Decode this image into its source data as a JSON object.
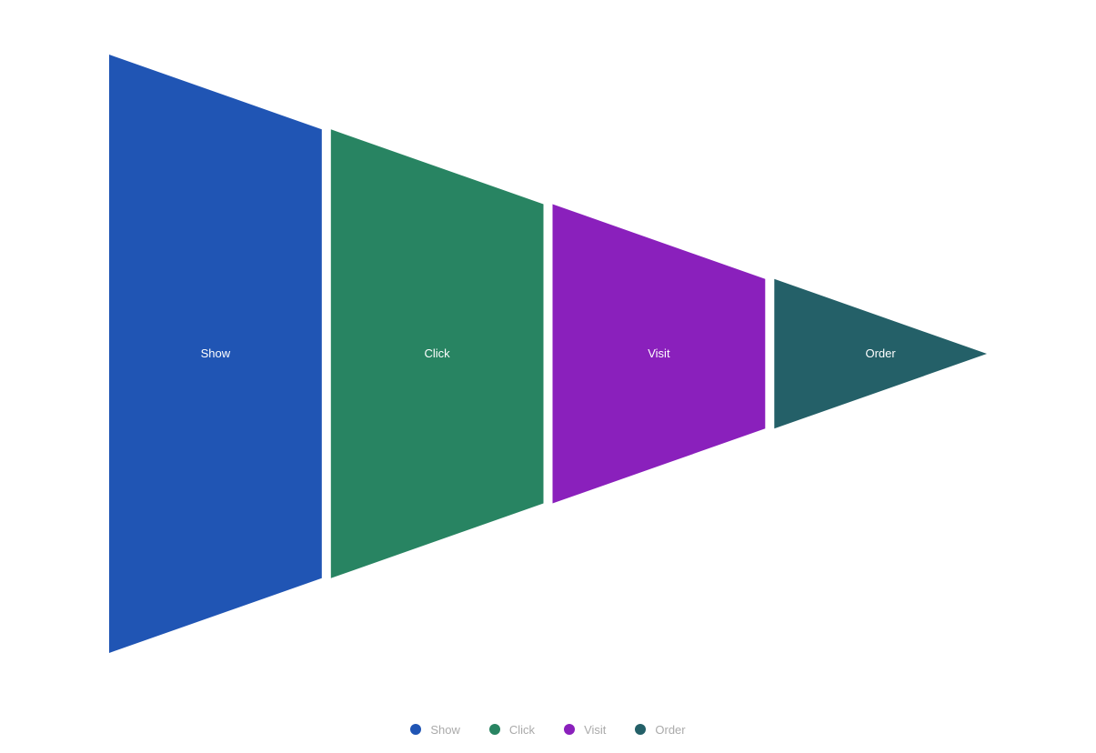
{
  "chart_data": {
    "type": "funnel",
    "orient": "horizontal",
    "sort": "descending",
    "categories": [
      "Show",
      "Click",
      "Visit",
      "Order"
    ],
    "values": [
      100,
      75,
      50,
      25
    ],
    "min": 0,
    "max": 100,
    "colors": [
      "#2055b4",
      "#288462",
      "#8a20bc",
      "#246068"
    ],
    "legend_position": "bottom-center",
    "legend_text_color": "#aaaaaa",
    "label_color": "#ffffff"
  },
  "legend": {
    "items": [
      {
        "label": "Show",
        "color": "#2055b4"
      },
      {
        "label": "Click",
        "color": "#288462"
      },
      {
        "label": "Visit",
        "color": "#8a20bc"
      },
      {
        "label": "Order",
        "color": "#246068"
      }
    ]
  }
}
